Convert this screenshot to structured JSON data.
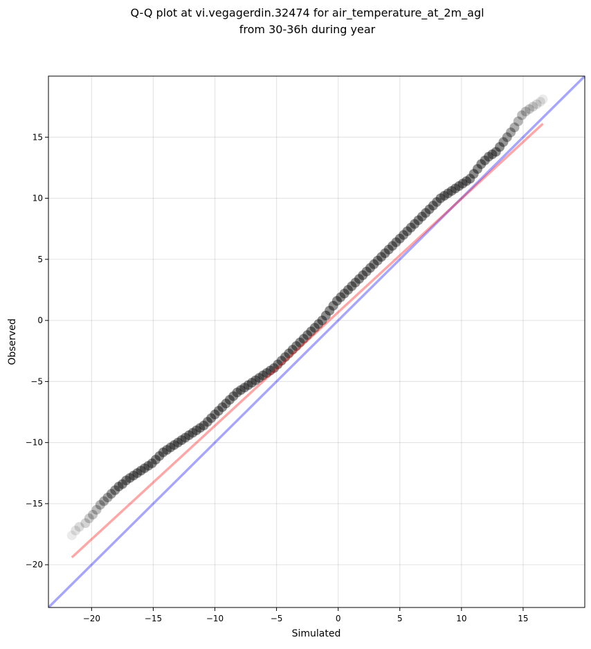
{
  "chart_data": {
    "type": "scatter",
    "title": [
      "Q-Q plot at vi.vegagerdin.32474 for air_temperature_at_2m_agl",
      "from 30-36h during year"
    ],
    "xlabel": "Simulated",
    "ylabel": "Observed",
    "xlim": [
      -23.5,
      20.0
    ],
    "ylim": [
      -23.5,
      20.0
    ],
    "xticks": [
      -20,
      -15,
      -10,
      -5,
      0,
      5,
      10,
      15
    ],
    "yticks": [
      -20,
      -15,
      -10,
      -5,
      0,
      5,
      10,
      15
    ],
    "xtick_labels": [
      "−20",
      "−15",
      "−10",
      "−5",
      "0",
      "5",
      "10",
      "15"
    ],
    "ytick_labels": [
      "−20",
      "−15",
      "−10",
      "−5",
      "0",
      "5",
      "10",
      "15"
    ],
    "grid": true,
    "series": [
      {
        "marker": "circle",
        "color": "#000000",
        "x": [
          -21.6,
          -21.3,
          -21.0,
          -20.5,
          -20.2,
          -19.9,
          -19.6,
          -19.3,
          -19.0,
          -18.7,
          -18.4,
          -18.1,
          -17.8,
          -17.5,
          -17.2,
          -16.9,
          -16.6,
          -16.3,
          -16.0,
          -15.7,
          -15.4,
          -15.1,
          -14.8,
          -14.5,
          -14.2,
          -13.9,
          -13.6,
          -13.3,
          -13.0,
          -12.7,
          -12.4,
          -12.1,
          -11.8,
          -11.5,
          -11.2,
          -10.9,
          -10.6,
          -10.3,
          -10.0,
          -9.7,
          -9.4,
          -9.1,
          -8.8,
          -8.5,
          -8.2,
          -7.9,
          -7.6,
          -7.3,
          -7.0,
          -6.7,
          -6.4,
          -6.1,
          -5.8,
          -5.5,
          -5.2,
          -4.9,
          -4.6,
          -4.3,
          -4.0,
          -3.7,
          -3.4,
          -3.1,
          -2.8,
          -2.5,
          -2.2,
          -1.9,
          -1.6,
          -1.3,
          -1.0,
          -0.7,
          -0.4,
          -0.1,
          0.2,
          0.5,
          0.8,
          1.1,
          1.4,
          1.7,
          2.0,
          2.3,
          2.6,
          2.9,
          3.2,
          3.5,
          3.8,
          4.1,
          4.4,
          4.7,
          5.0,
          5.3,
          5.6,
          5.9,
          6.2,
          6.5,
          6.8,
          7.1,
          7.4,
          7.7,
          8.0,
          8.3,
          8.6,
          8.9,
          9.2,
          9.5,
          9.8,
          10.1,
          10.4,
          10.7,
          11.0,
          11.3,
          11.6,
          11.9,
          12.2,
          12.5,
          12.8,
          13.1,
          13.4,
          13.7,
          14.0,
          14.3,
          14.6,
          14.9,
          15.2,
          15.5,
          15.8,
          16.1,
          16.4,
          16.6
        ],
        "y": [
          -17.6,
          -17.2,
          -16.9,
          -16.6,
          -16.2,
          -15.9,
          -15.5,
          -15.1,
          -14.8,
          -14.5,
          -14.2,
          -13.9,
          -13.6,
          -13.4,
          -13.1,
          -12.9,
          -12.7,
          -12.5,
          -12.3,
          -12.1,
          -11.9,
          -11.7,
          -11.4,
          -11.1,
          -10.8,
          -10.6,
          -10.4,
          -10.2,
          -10.0,
          -9.8,
          -9.6,
          -9.4,
          -9.2,
          -9.0,
          -8.8,
          -8.6,
          -8.3,
          -8.0,
          -7.7,
          -7.4,
          -7.1,
          -6.8,
          -6.5,
          -6.2,
          -5.9,
          -5.7,
          -5.5,
          -5.3,
          -5.1,
          -4.9,
          -4.7,
          -4.5,
          -4.3,
          -4.1,
          -3.9,
          -3.6,
          -3.3,
          -3.0,
          -2.7,
          -2.4,
          -2.1,
          -1.8,
          -1.5,
          -1.2,
          -0.9,
          -0.6,
          -0.3,
          0.0,
          0.4,
          0.8,
          1.2,
          1.6,
          1.9,
          2.2,
          2.5,
          2.8,
          3.1,
          3.4,
          3.7,
          4.0,
          4.3,
          4.6,
          4.9,
          5.2,
          5.5,
          5.8,
          6.1,
          6.4,
          6.7,
          7.0,
          7.3,
          7.6,
          7.9,
          8.2,
          8.5,
          8.8,
          9.1,
          9.4,
          9.7,
          10.0,
          10.2,
          10.4,
          10.6,
          10.8,
          11.0,
          11.2,
          11.4,
          11.6,
          12.0,
          12.4,
          12.8,
          13.1,
          13.4,
          13.6,
          13.8,
          14.2,
          14.6,
          15.0,
          15.4,
          15.8,
          16.3,
          16.8,
          17.1,
          17.3,
          17.5,
          17.7,
          17.9,
          18.1
        ]
      },
      {
        "type": "line",
        "color": "#0000ff",
        "x": [
          -23.5,
          20.0
        ],
        "y": [
          -23.5,
          20.0
        ]
      },
      {
        "type": "line",
        "color": "#ff0000",
        "x": [
          -21.6,
          16.6
        ],
        "y": [
          -19.4,
          16.1
        ]
      }
    ]
  }
}
